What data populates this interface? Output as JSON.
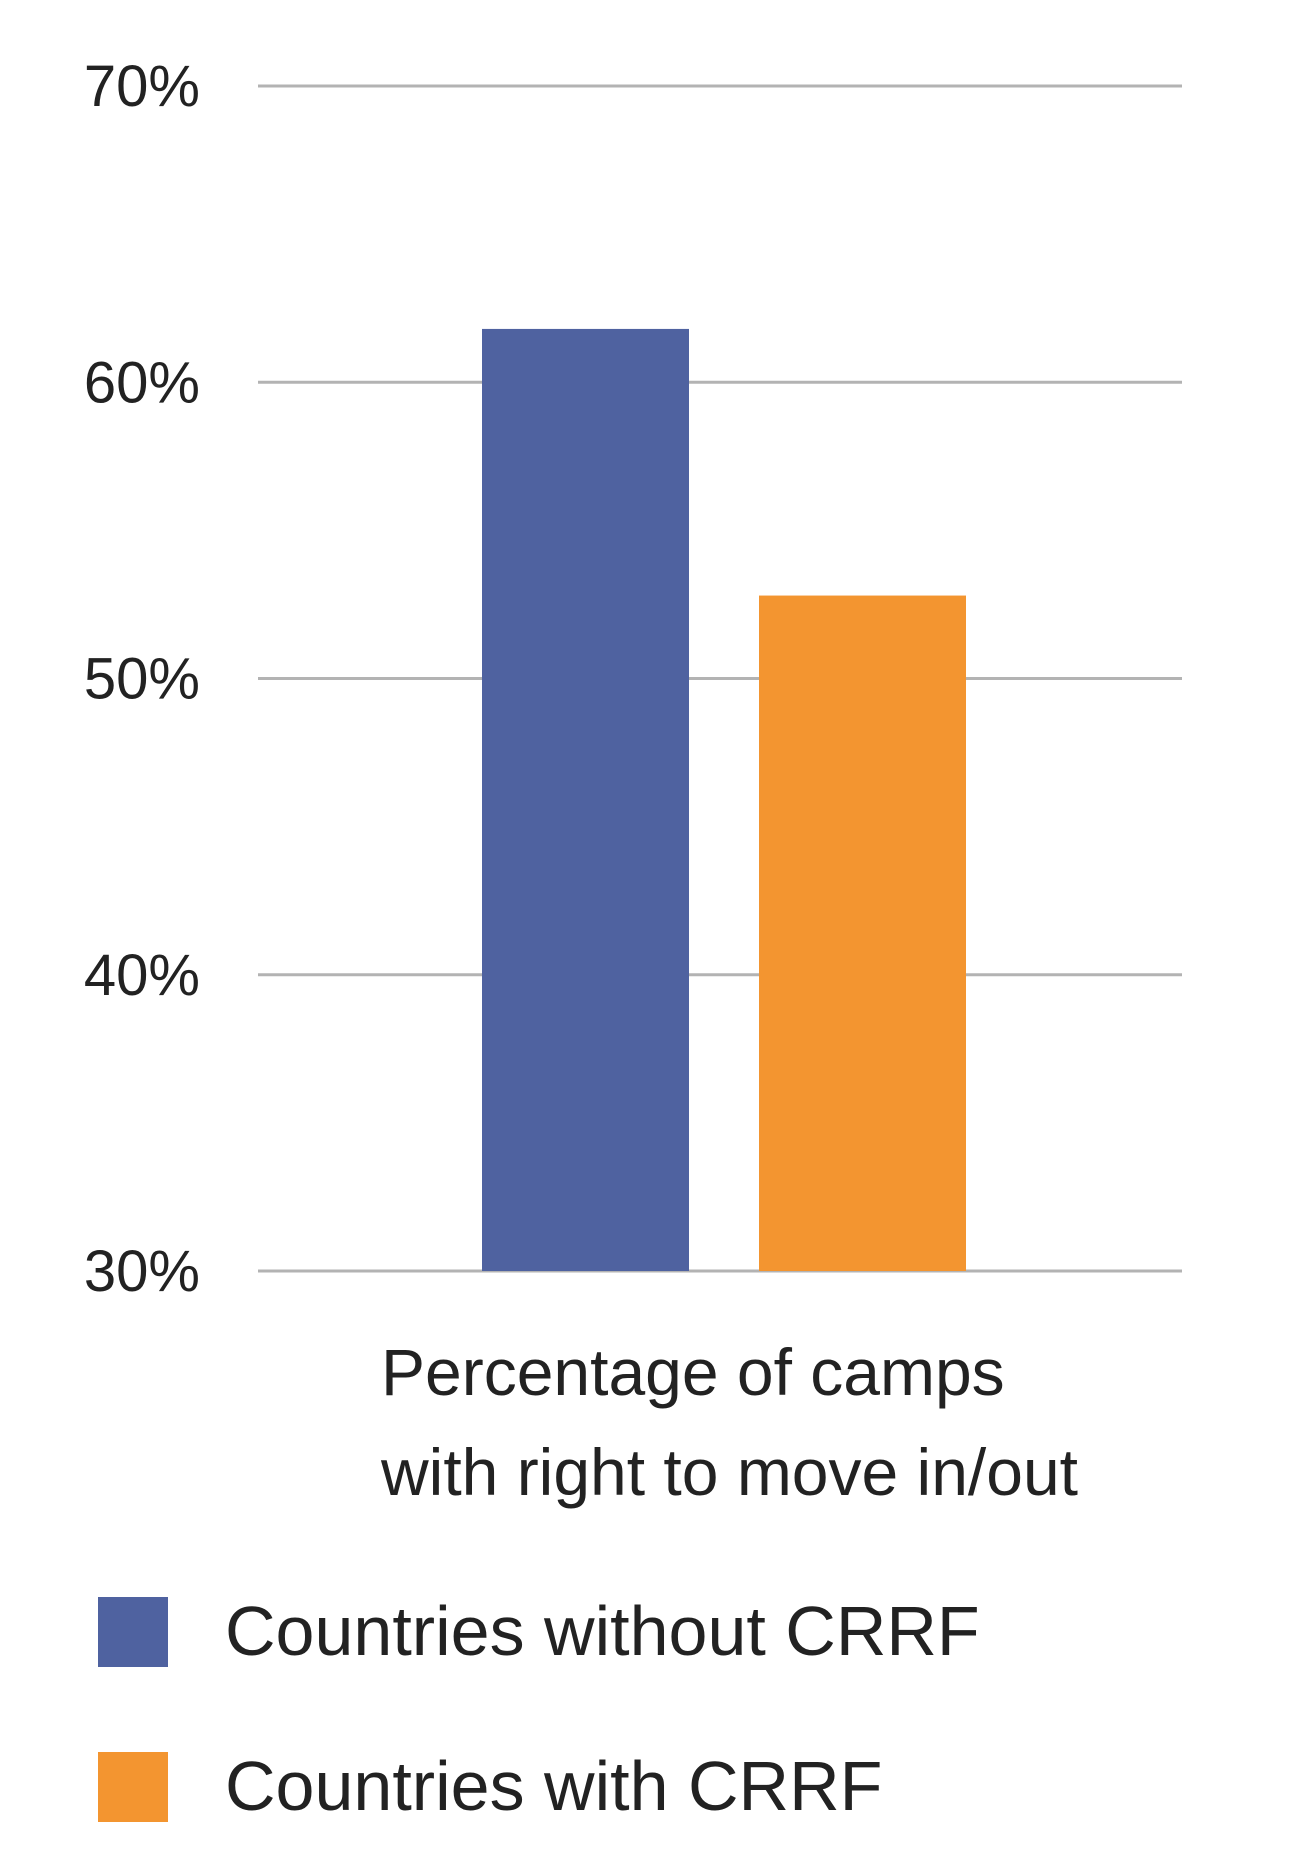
{
  "chart_data": {
    "type": "bar",
    "categories": [
      "Percentage of camps with right to move in/out"
    ],
    "category_label_lines": [
      "Percentage of camps",
      "with right to move in/out"
    ],
    "series": [
      {
        "name": "Countries without CRRF",
        "values": [
          61.8
        ],
        "color": "#4f62a0"
      },
      {
        "name": "Countries with CRRF",
        "values": [
          52.8
        ],
        "color": "#f39530"
      }
    ],
    "ylim": [
      30,
      70
    ],
    "yticks": [
      30,
      40,
      50,
      60,
      70
    ],
    "ytick_labels": [
      "30%",
      "40%",
      "50%",
      "60%",
      "70%"
    ],
    "grid": true,
    "grid_color": "#b3b3b3",
    "legend_position": "bottom-left",
    "title": "",
    "xlabel": "",
    "ylabel": ""
  }
}
